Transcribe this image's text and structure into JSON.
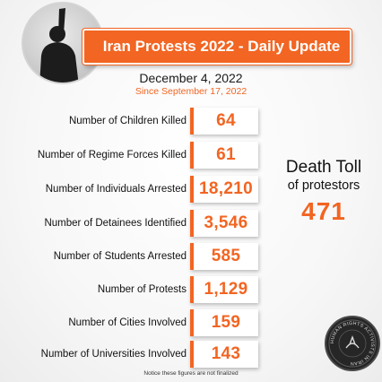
{
  "header": {
    "title": "Iran Protests 2022 - Daily Update",
    "date": "December 4, 2022",
    "since": "Since September 17, 2022"
  },
  "stats": [
    {
      "label": "Number of Children Killed",
      "value": "64"
    },
    {
      "label": "Number of Regime Forces Killed",
      "value": "61"
    },
    {
      "label": "Number of Individuals Arrested",
      "value": "18,210"
    },
    {
      "label": "Number of Detainees Identified",
      "value": "3,546"
    },
    {
      "label": "Number of Students Arrested",
      "value": "585"
    },
    {
      "label": "Number of Protests",
      "value": "1,129"
    },
    {
      "label": "Number of Cities Involved",
      "value": "159"
    },
    {
      "label": "Number of Universities Involved",
      "value": "143"
    }
  ],
  "death_toll": {
    "line1": "Death Toll",
    "line2": "of protestors",
    "value": "471"
  },
  "seal_text": "HUMAN RIGHTS ACTIVISTS IN IRAN",
  "notice": "Notice these figures are not finalized",
  "colors": {
    "accent": "#f26522",
    "text": "#111111",
    "seal": "#262626"
  },
  "icons": {
    "header_image": "protester-silhouette-icon",
    "logo": "hrai-seal-icon"
  }
}
